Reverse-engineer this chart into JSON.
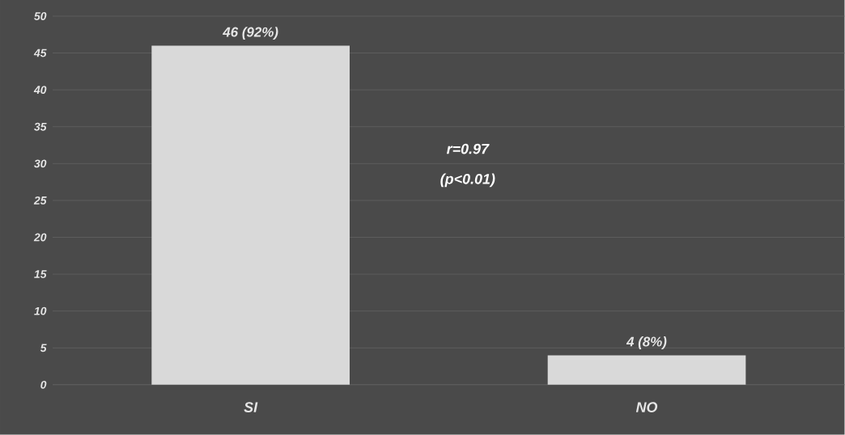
{
  "chart_data": {
    "type": "bar",
    "categories": [
      "SI",
      "NO"
    ],
    "values": [
      46,
      4
    ],
    "value_labels": [
      "46 (92%)",
      "4 (8%)"
    ],
    "color": "#d9d9d9",
    "ylim": [
      0,
      50
    ],
    "yticks": [
      0,
      5,
      10,
      15,
      20,
      25,
      30,
      35,
      40,
      45,
      50
    ],
    "grid": "y",
    "annotations": [
      "r=0.97",
      "(p<0.01)"
    ]
  }
}
